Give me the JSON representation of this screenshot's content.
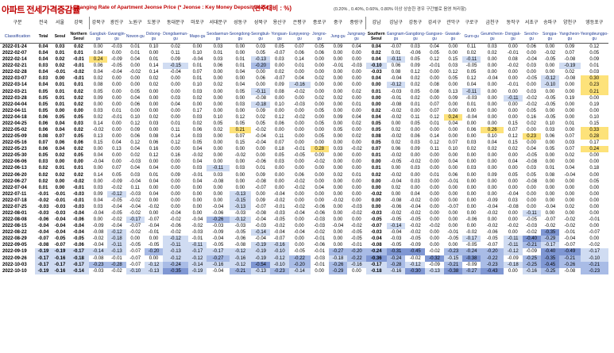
{
  "title_ko": "아파트 전세가격증감률",
  "title_en": "Changing Rate of Apartment Jeonse Price",
  "title_en_note": "(* Jeonse : Key Money Deposit Lease )",
  "unit": "(전주대비 : %)",
  "note": "(0.20% , 0.40%, 0.60%, 0.80% 이상 상승한 경우 구간별로 음영 처리함)",
  "header_top": [
    "구분",
    "전국",
    "서울",
    "강북",
    "",
    "",
    "",
    "",
    "",
    "",
    "",
    "",
    "",
    "",
    "",
    "",
    "",
    "",
    "강남",
    "",
    "",
    "",
    "",
    "",
    "",
    "",
    "",
    "",
    "",
    ""
  ],
  "columns_ko": [
    "",
    "",
    "",
    "",
    "강북구",
    "광진구",
    "노원구",
    "도봉구",
    "동대문구",
    "마포구",
    "서대문구",
    "성동구",
    "성북구",
    "용산구",
    "은평구",
    "종로구",
    "중구",
    "중랑구",
    "",
    "강남구",
    "강동구",
    "강서구",
    "관악구",
    "구로구",
    "금천구",
    "동작구",
    "서초구",
    "송파구",
    "양천구",
    "영등포구"
  ],
  "columns_en": [
    "Classification",
    "Total",
    "Seoul",
    "Northern Seoul",
    "Gangbuk-gu",
    "Gwangjin-gu",
    "Nowon-gu",
    "Dobong-gu",
    "Dongdaemun-gu",
    "Mapo-gu",
    "Seodaemun-gu",
    "Seongdong-gu",
    "Seongbuk-gu",
    "Yongsan-gu",
    "Eunpyeong-gu",
    "Jongno-gu",
    "Jung-gu",
    "Jungnang-gu",
    "Southern Seoul",
    "Gangnam-gu",
    "Gangdong-gu",
    "Gangseo-gu",
    "Gwanak-gu",
    "Guro-gu",
    "Geumcheon-gu",
    "Dongjak-gu",
    "Seocho-gu",
    "Songpa-gu",
    "Yangcheon-gu",
    "Yeongdeungpo-gu"
  ],
  "rows": [
    [
      "2022-01-24",
      "0.04",
      "0.03",
      "0.02",
      "0.00",
      "-0.03",
      "0.01",
      "0.10",
      "0.02",
      "0.00",
      "0.03",
      "0.00",
      "0.03",
      "0.05",
      "0.07",
      "0.05",
      "0.09",
      "0.04",
      "0.04",
      "-0.07",
      "0.03",
      "0.04",
      "0.00",
      "0.11",
      "0.03",
      "0.00",
      "0.06",
      "0.00",
      "0.09",
      "0.12"
    ],
    [
      "2022-02-07",
      "0.04",
      "0.01",
      "0.01",
      "0.04",
      "0.00",
      "0.01",
      "0.00",
      "0.11",
      "0.10",
      "0.01",
      "0.00",
      "0.05",
      "-0.07",
      "0.06",
      "0.06",
      "0.00",
      "0.00",
      "0.02",
      "0.01",
      "-0.06",
      "0.05",
      "0.00",
      "0.02",
      "0.02",
      "-0.01",
      "0.00",
      "-0.02",
      "0.07",
      "0.05"
    ],
    [
      "2022-02-14",
      "0.04",
      "0.02",
      "-0.01",
      "0.24",
      "-0.09",
      "0.04",
      "0.01",
      "0.09",
      "-0.04",
      "0.03",
      "0.01",
      "-0.13",
      "0.03",
      "0.14",
      "0.00",
      "0.00",
      "0.00",
      "0.04",
      "-0.11",
      "0.05",
      "0.12",
      "0.15",
      "-0.11",
      "0.00",
      "0.08",
      "-0.04",
      "-0.05",
      "-0.08",
      "0.09"
    ],
    [
      "2022-02-21",
      "0.03",
      "0.02",
      "-0.01",
      "0.06",
      "-0.05",
      "0.00",
      "0.14",
      "-0.15",
      "0.01",
      "0.06",
      "0.01",
      "-0.20",
      "0.00",
      "0.01",
      "0.00",
      "-0.01",
      "-0.03",
      "-0.10",
      "0.06",
      "0.09",
      "-0.01",
      "0.03",
      "-0.05",
      "0.00",
      "-0.02",
      "0.03",
      "0.00",
      "-0.19",
      "0.01"
    ],
    [
      "2022-02-28",
      "0.04",
      "-0.01",
      "-0.02",
      "0.04",
      "-0.04",
      "-0.02",
      "0.14",
      "-0.04",
      "0.07",
      "0.00",
      "0.04",
      "0.00",
      "0.02",
      "0.00",
      "0.00",
      "0.00",
      "0.00",
      "-0.03",
      "0.08",
      "0.12",
      "0.00",
      "0.12",
      "0.05",
      "0.00",
      "0.00",
      "0.00",
      "0.00",
      "0.02",
      "0.03"
    ],
    [
      "2022-03-07",
      "0.03",
      "0.00",
      "-0.01",
      "0.02",
      "0.00",
      "0.00",
      "0.02",
      "0.00",
      "0.01",
      "0.00",
      "0.00",
      "0.06",
      "-0.07",
      "0.04",
      "0.02",
      "0.00",
      "0.00",
      "0.04",
      "-0.04",
      "0.02",
      "0.00",
      "0.05",
      "0.12",
      "-0.04",
      "0.00",
      "-0.05",
      "-0.12",
      "-0.08",
      "0.30"
    ],
    [
      "2022-03-14",
      "0.04",
      "0.01",
      "0.01",
      "0.08",
      "0.00",
      "0.00",
      "0.02",
      "0.00",
      "0.10",
      "0.02",
      "0.04",
      "0.00",
      "0.09",
      "-0.16",
      "0.00",
      "0.00",
      "0.00",
      "0.00",
      "-0.12",
      "0.02",
      "0.08",
      "0.00",
      "0.04",
      "0.00",
      "-0.01",
      "0.00",
      "-0.10",
      "0.00",
      "0.23"
    ],
    [
      "2022-03-21",
      "0.05",
      "0.01",
      "0.02",
      "0.05",
      "0.00",
      "0.05",
      "0.00",
      "0.00",
      "0.03",
      "0.00",
      "0.05",
      "-0.11",
      "0.08",
      "-0.02",
      "0.00",
      "0.00",
      "0.02",
      "0.01",
      "-0.03",
      "0.05",
      "0.08",
      "0.13",
      "-0.11",
      "0.00",
      "0.00",
      "0.03",
      "0.00",
      "0.00",
      "0.21"
    ],
    [
      "2022-03-28",
      "0.05",
      "0.01",
      "0.02",
      "0.09",
      "0.00",
      "0.04",
      "0.00",
      "0.03",
      "0.02",
      "0.00",
      "0.00",
      "-0.08",
      "0.00",
      "0.00",
      "0.02",
      "0.02",
      "0.00",
      "0.00",
      "-0.01",
      "0.02",
      "0.00",
      "0.09",
      "-0.03",
      "0.00",
      "-0.11",
      "-0.02",
      "-0.05",
      "0.19",
      "0.00"
    ],
    [
      "2022-04-04",
      "0.05",
      "0.01",
      "0.02",
      "0.00",
      "0.00",
      "0.06",
      "0.00",
      "0.04",
      "0.00",
      "0.00",
      "0.03",
      "-0.18",
      "0.10",
      "-0.03",
      "0.00",
      "0.00",
      "0.01",
      "0.00",
      "-0.08",
      "0.01",
      "0.07",
      "0.00",
      "0.01",
      "0.00",
      "0.00",
      "-0.02",
      "-0.05",
      "0.00",
      "0.19"
    ],
    [
      "2022-04-11",
      "0.05",
      "0.00",
      "0.00",
      "0.03",
      "0.01",
      "0.00",
      "0.00",
      "0.00",
      "0.17",
      "0.00",
      "0.00",
      "0.09",
      "0.00",
      "0.00",
      "0.05",
      "0.00",
      "0.00",
      "0.02",
      "-0.02",
      "0.00",
      "0.07",
      "0.00",
      "0.00",
      "0.00",
      "0.00",
      "0.05",
      "0.00",
      "0.00",
      "0.00"
    ],
    [
      "2022-04-18",
      "0.06",
      "0.05",
      "0.05",
      "0.02",
      "-0.01",
      "0.10",
      "0.02",
      "0.00",
      "0.03",
      "0.10",
      "0.12",
      "0.02",
      "0.12",
      "-0.02",
      "0.00",
      "0.09",
      "0.04",
      "0.04",
      "-0.02",
      "0.11",
      "0.12",
      "0.24",
      "-0.04",
      "0.00",
      "0.00",
      "0.16",
      "-0.05",
      "0.00",
      "0.10"
    ],
    [
      "2022-04-25",
      "0.06",
      "0.04",
      "0.03",
      "0.14",
      "0.00",
      "0.12",
      "0.03",
      "0.01",
      "0.02",
      "0.05",
      "0.05",
      "0.05",
      "0.06",
      "0.00",
      "0.05",
      "0.00",
      "0.02",
      "0.05",
      "0.00",
      "0.05",
      "0.01",
      "0.04",
      "0.00",
      "0.00",
      "0.15",
      "0.02",
      "0.10",
      "0.01",
      "0.15"
    ],
    [
      "2022-05-02",
      "0.06",
      "0.04",
      "0.02",
      "-0.02",
      "0.00",
      "0.09",
      "0.00",
      "0.11",
      "0.06",
      "0.02",
      "0.21",
      "-0.02",
      "0.00",
      "0.00",
      "0.00",
      "0.05",
      "0.00",
      "0.05",
      "0.02",
      "0.00",
      "0.00",
      "0.00",
      "0.06",
      "0.26",
      "0.07",
      "0.00",
      "0.03",
      "0.00",
      "0.33"
    ],
    [
      "2022-05-09",
      "0.08",
      "0.07",
      "0.05",
      "0.13",
      "0.00",
      "0.06",
      "0.08",
      "0.14",
      "0.03",
      "0.00",
      "0.07",
      "-0.04",
      "0.11",
      "0.00",
      "0.05",
      "0.00",
      "0.02",
      "0.08",
      "-0.02",
      "0.06",
      "0.14",
      "0.00",
      "0.00",
      "0.10",
      "0.12",
      "0.23",
      "0.06",
      "0.07",
      "0.28"
    ],
    [
      "2022-05-16",
      "0.07",
      "0.06",
      "0.06",
      "0.15",
      "0.04",
      "0.12",
      "0.06",
      "0.12",
      "0.05",
      "0.00",
      "0.15",
      "-0.04",
      "0.07",
      "0.00",
      "0.00",
      "0.00",
      "0.00",
      "0.05",
      "0.02",
      "0.03",
      "0.12",
      "0.07",
      "0.03",
      "0.04",
      "0.15",
      "0.00",
      "0.00",
      "0.03",
      "0.17"
    ],
    [
      "2022-05-23",
      "0.06",
      "0.04",
      "0.02",
      "0.00",
      "0.13",
      "0.04",
      "0.16",
      "0.00",
      "0.04",
      "0.00",
      "0.00",
      "0.00",
      "0.18",
      "-0.01",
      "0.28",
      "0.03",
      "-0.02",
      "0.07",
      "0.06",
      "0.09",
      "0.11",
      "0.10",
      "0.02",
      "0.02",
      "0.02",
      "0.04",
      "0.05",
      "0.07",
      "0.24"
    ],
    [
      "2022-05-30",
      "0.05",
      "0.02",
      "0.05",
      "0.04",
      "0.00",
      "0.02",
      "0.12",
      "0.16",
      "-0.02",
      "0.00",
      "-0.02",
      "0.00",
      "0.05",
      "-0.05",
      "0.00",
      "0.00",
      "0.00",
      "0.01",
      "-0.02",
      "0.00",
      "0.00",
      "0.00",
      "0.00",
      "0.00",
      "0.00",
      "-0.05",
      "0.00",
      "0.02",
      "0.00"
    ],
    [
      "2022-06-06",
      "0.03",
      "0.00",
      "0.00",
      "-0.04",
      "0.00",
      "-0.03",
      "0.00",
      "0.00",
      "0.04",
      "0.00",
      "0.00",
      "-0.06",
      "0.03",
      "0.00",
      "-0.02",
      "0.00",
      "0.00",
      "0.00",
      "-0.05",
      "-0.02",
      "0.00",
      "0.04",
      "0.00",
      "0.00",
      "0.04",
      "-0.08",
      "0.00",
      "0.00",
      "0.00"
    ],
    [
      "2022-06-13",
      "0.02",
      "0.01",
      "0.01",
      "0.00",
      "0.07",
      "0.04",
      "0.04",
      "0.00",
      "0.03",
      "-0.11",
      "0.03",
      "0.01",
      "0.00",
      "0.00",
      "0.00",
      "0.00",
      "0.00",
      "0.01",
      "0.00",
      "0.03",
      "0.00",
      "0.00",
      "0.03",
      "0.00",
      "0.00",
      "0.03",
      "0.01",
      "0.04",
      "0.18"
    ],
    [
      "2022-06-20",
      "0.02",
      "0.02",
      "0.02",
      "0.14",
      "0.05",
      "0.03",
      "0.01",
      "0.09",
      "-0.01",
      "0.03",
      "0.00",
      "0.09",
      "0.00",
      "0.06",
      "0.00",
      "0.02",
      "0.01",
      "0.02",
      "-0.02",
      "0.00",
      "0.01",
      "0.06",
      "0.00",
      "0.09",
      "0.05",
      "0.05",
      "0.08",
      "-0.04",
      "0.00"
    ],
    [
      "2022-06-27",
      "0.02",
      "0.00",
      "-0.02",
      "0.00",
      "-0.09",
      "-0.04",
      "0.04",
      "0.00",
      "0.04",
      "-0.08",
      "0.00",
      "-0.08",
      "0.00",
      "-0.02",
      "0.00",
      "0.00",
      "0.00",
      "0.00",
      "-0.04",
      "0.03",
      "0.00",
      "-0.01",
      "0.00",
      "0.00",
      "0.00",
      "-0.08",
      "0.00",
      "0.00",
      "0.05"
    ],
    [
      "2022-07-04",
      "0.01",
      "0.00",
      "-0.01",
      "0.03",
      "-0.02",
      "0.11",
      "0.00",
      "0.00",
      "0.00",
      "0.00",
      "0.00",
      "-0.07",
      "0.00",
      "-0.02",
      "0.04",
      "0.00",
      "0.00",
      "0.00",
      "0.02",
      "0.00",
      "0.00",
      "0.00",
      "0.00",
      "0.00",
      "0.00",
      "0.00",
      "0.00",
      "0.00",
      "0.00"
    ],
    [
      "2022-07-11",
      "-0.01",
      "-0.01",
      "-0.03",
      "0.09",
      "-0.12",
      "-0.03",
      "0.04",
      "0.00",
      "0.00",
      "0.00",
      "-0.13",
      "0.00",
      "-0.04",
      "0.00",
      "0.00",
      "0.00",
      "0.00",
      "-0.02",
      "0.00",
      "0.04",
      "0.00",
      "0.00",
      "0.00",
      "0.00",
      "-0.04",
      "0.00",
      "0.00",
      "0.00",
      "0.00"
    ],
    [
      "2022-07-18",
      "-0.02",
      "-0.01",
      "-0.01",
      "0.04",
      "-0.05",
      "-0.02",
      "0.00",
      "0.00",
      "0.00",
      "0.00",
      "-0.15",
      "0.09",
      "-0.02",
      "0.00",
      "0.00",
      "-0.02",
      "0.00",
      "0.00",
      "-0.08",
      "-0.02",
      "0.00",
      "0.00",
      "0.00",
      "-0.09",
      "0.03",
      "0.00",
      "0.00",
      "0.00",
      "0.00"
    ],
    [
      "2022-07-25",
      "-0.03",
      "-0.03",
      "-0.03",
      "0.03",
      "-0.04",
      "-0.04",
      "-0.02",
      "0.00",
      "0.00",
      "-0.04",
      "-0.13",
      "-0.07",
      "-0.01",
      "-0.02",
      "-0.06",
      "0.00",
      "-0.03",
      "0.00",
      "-0.06",
      "-0.04",
      "0.00",
      "-0.07",
      "0.00",
      "-0.04",
      "-0.08",
      "0.00",
      "-0.04",
      "0.02",
      "0.00"
    ],
    [
      "2022-08-01",
      "-0.03",
      "-0.03",
      "-0.04",
      "-0.04",
      "-0.05",
      "-0.02",
      "0.00",
      "-0.04",
      "0.00",
      "-0.06",
      "-0.03",
      "-0.08",
      "-0.03",
      "-0.04",
      "-0.06",
      "0.00",
      "-0.02",
      "-0.03",
      "-0.02",
      "-0.02",
      "0.00",
      "0.00",
      "0.00",
      "-0.02",
      "0.00",
      "-0.11",
      "0.00",
      "0.00",
      "0.00"
    ],
    [
      "2022-08-08",
      "-0.06",
      "-0.04",
      "-0.06",
      "0.00",
      "-0.02",
      "-0.17",
      "-0.07",
      "-0.02",
      "-0.04",
      "-0.26",
      "-0.12",
      "-0.04",
      "-0.05",
      "0.00",
      "-0.03",
      "0.00",
      "0.00",
      "-0.05",
      "-0.05",
      "-0.05",
      "0.00",
      "0.00",
      "-0.06",
      "0.00",
      "0.00",
      "-0.05",
      "-0.07",
      "-0.02",
      "-0.01"
    ],
    [
      "2022-08-15",
      "-0.04",
      "-0.04",
      "-0.04",
      "-0.09",
      "-0.04",
      "-0.07",
      "-0.04",
      "-0.06",
      "-0.02",
      "-0.03",
      "-0.03",
      "-0.03",
      "-0.02",
      "0.00",
      "-0.03",
      "-0.04",
      "-0.02",
      "-0.07",
      "-0.14",
      "-0.02",
      "-0.02",
      "0.00",
      "0.00",
      "-0.02",
      "-0.02",
      "-0.03",
      "-0.02",
      "-0.02",
      "0.00"
    ],
    [
      "2022-08-22",
      "-0.04",
      "-0.04",
      "-0.04",
      "-0.08",
      "-0.12",
      "-0.02",
      "-0.01",
      "-0.02",
      "-0.03",
      "-0.09",
      "-0.05",
      "-0.14",
      "-0.04",
      "-0.04",
      "-0.02",
      "0.00",
      "-0.05",
      "-0.03",
      "-0.04",
      "-0.02",
      "0.00",
      "-0.01",
      "-0.02",
      "-0.06",
      "0.00",
      "-0.02",
      "-0.35",
      "-0.01",
      "-0.07"
    ],
    [
      "2022-08-29",
      "-0.07",
      "-0.05",
      "-0.05",
      "-0.02",
      "-0.18",
      "0.00",
      "0.00",
      "-0.12",
      "-0.01",
      "-0.04",
      "-0.06",
      "-0.04",
      "-0.07",
      "0.00",
      "-0.01",
      "0.00",
      "-0.05",
      "-0.04",
      "-0.03",
      "-0.05",
      "0.00",
      "-0.05",
      "-0.17",
      "-0.05",
      "-0.11",
      "-0.40",
      "-0.29",
      "-0.04",
      "0.00"
    ],
    [
      "2022-09-05",
      "-0.08",
      "-0.07",
      "-0.06",
      "-0.04",
      "-0.11",
      "-0.05",
      "-0.05",
      "-0.11",
      "-0.11",
      "-0.05",
      "-0.08",
      "-0.19",
      "-0.16",
      "0.00",
      "-0.06",
      "0.00",
      "-0.01",
      "-0.08",
      "-0.05",
      "-0.09",
      "0.00",
      "0.00",
      "-0.05",
      "-0.07",
      "-0.11",
      "-0.21",
      "-0.17",
      "-0.07",
      "-0.02"
    ],
    [
      "2022-09-19",
      "-0.19",
      "-0.19",
      "-0.17",
      "-0.14",
      "-0.13",
      "-0.07",
      "-0.20",
      "-0.13",
      "-0.17",
      "-0.17",
      "-0.12",
      "-0.19",
      "-0.10",
      "-0.05",
      "-0.01",
      "-0.27",
      "-0.20",
      "-0.24",
      "-0.31",
      "-0.45",
      "-0.02",
      "-0.23",
      "-0.24",
      "-0.20",
      "-0.12",
      "-0.09",
      "-0.40",
      "-0.49",
      "-0.17"
    ],
    [
      "2022-09-26",
      "-0.17",
      "-0.16",
      "-0.18",
      "-0.08",
      "-0.01",
      "-0.07",
      "0.00",
      "-0.12",
      "-0.12",
      "-0.27",
      "-0.16",
      "-0.19",
      "-0.12",
      "-0.22",
      "-0.03",
      "-0.18",
      "-0.22",
      "-0.36",
      "-0.24",
      "-0.02",
      "-0.32",
      "-0.15",
      "-0.38",
      "-0.22",
      "-0.09",
      "-0.25",
      "-0.35",
      "-0.21",
      "-0.10"
    ],
    [
      "2022-10-03",
      "-0.17",
      "-0.17",
      "-0.17",
      "-0.23",
      "-0.28",
      "-0.07",
      "-0.12",
      "-0.24",
      "-0.14",
      "-0.16",
      "-0.12",
      "-0.54",
      "-0.10",
      "-0.20",
      "-0.01",
      "-0.26",
      "-0.16",
      "-0.17",
      "-0.28",
      "-0.12",
      "-0.09",
      "-0.21",
      "-0.09",
      "-0.23",
      "-0.18",
      "-0.25",
      "-0.45",
      "-0.26",
      "-0.21"
    ],
    [
      "2022-10-10",
      "-0.19",
      "-0.16",
      "-0.14",
      "-0.03",
      "-0.02",
      "-0.10",
      "-0.13",
      "-0.35",
      "-0.19",
      "-0.04",
      "-0.21",
      "-0.13",
      "-0.23",
      "-0.14",
      "0.00",
      "-0.29",
      "0.00",
      "-0.18",
      "-0.16",
      "-0.30",
      "-0.13",
      "-0.38",
      "-0.27",
      "-0.43",
      "0.00",
      "-0.16",
      "-0.25",
      "-0.08",
      "-0.23"
    ]
  ]
}
